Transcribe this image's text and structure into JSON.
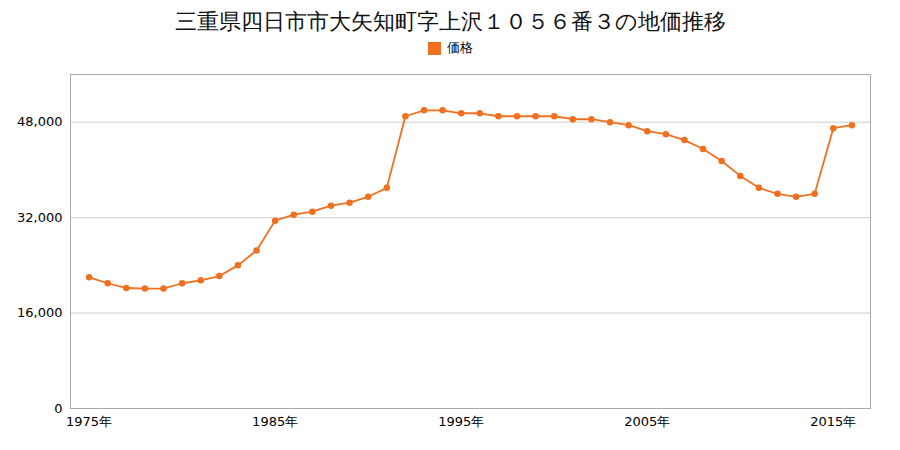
{
  "chart_data": {
    "type": "line",
    "title": "三重県四日市市大矢知町字上沢１０５６番３の地価推移",
    "x": [
      1975,
      1976,
      1977,
      1978,
      1979,
      1980,
      1981,
      1982,
      1983,
      1984,
      1985,
      1986,
      1987,
      1988,
      1989,
      1990,
      1991,
      1992,
      1993,
      1994,
      1995,
      1996,
      1997,
      1998,
      1999,
      2000,
      2001,
      2002,
      2003,
      2004,
      2005,
      2006,
      2007,
      2008,
      2009,
      2010,
      2011,
      2012,
      2013,
      2014,
      2015,
      2016
    ],
    "series": [
      {
        "name": "価格",
        "color": "#f07020",
        "marker": "circle",
        "values": [
          22000,
          21000,
          20200,
          20100,
          20100,
          21000,
          21500,
          22200,
          24000,
          26500,
          31500,
          32500,
          33000,
          34000,
          34500,
          35500,
          37000,
          49000,
          50000,
          50000,
          49500,
          49500,
          49000,
          49000,
          49000,
          49000,
          48500,
          48500,
          48000,
          47500,
          46500,
          46000,
          45000,
          43500,
          41500,
          39000,
          37000,
          36000,
          35500,
          36000,
          47000,
          47500
        ]
      }
    ],
    "xlim": [
      1974,
      2017
    ],
    "xticks": [
      {
        "value": 1975,
        "label": "1975年"
      },
      {
        "value": 1985,
        "label": "1985年"
      },
      {
        "value": 1995,
        "label": "1995年"
      },
      {
        "value": 2005,
        "label": "2005年"
      },
      {
        "value": 2015,
        "label": "2015年"
      }
    ],
    "ylim": [
      0,
      56000
    ],
    "yticks": [
      0,
      {
        "value": 16000,
        "label": "16,000"
      },
      {
        "value": 32000,
        "label": "32,000"
      },
      {
        "value": 48000,
        "label": "48,000"
      }
    ],
    "grid": true,
    "legend": "top"
  }
}
